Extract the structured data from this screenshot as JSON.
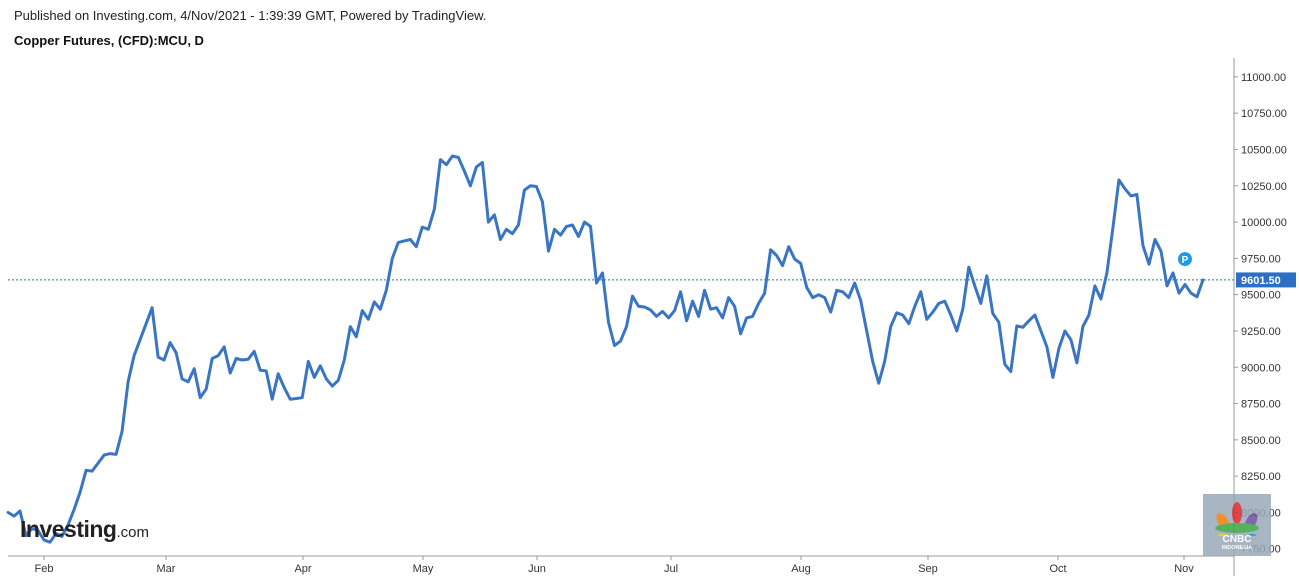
{
  "header": {
    "published": "Published on Investing.com, 4/Nov/2021 - 1:39:39 GMT, Powered by TradingView.",
    "instrument": "Copper Futures, (CFD):MCU, D"
  },
  "logo": {
    "main": "Investing",
    "suffix": ".com"
  },
  "badge": {
    "name": "CNBC",
    "sub": "INDONESIA"
  },
  "colors": {
    "line": "#3a75c4",
    "marker": "#1e9be6",
    "price_tag": "#2d6fc4"
  },
  "chart_data": {
    "type": "line",
    "title": "Copper Futures, (CFD):MCU, D",
    "x_tick_labels": [
      "Feb",
      "Mar",
      "Apr",
      "May",
      "Jun",
      "Jul",
      "Aug",
      "Sep",
      "Oct",
      "Nov"
    ],
    "y_tick_labels": [
      "7750.00",
      "8000.00",
      "8250.00",
      "8500.00",
      "8750.00",
      "9000.00",
      "9250.00",
      "9500.00",
      "9750.00",
      "10000.00",
      "10250.00",
      "10500.00",
      "10750.00",
      "11000.00"
    ],
    "ylim": [
      7700,
      11130
    ],
    "last_price": 9601.5,
    "last_price_label": "9601.50",
    "marker_label": "P",
    "marker_value": 9745,
    "grid": false,
    "series": [
      {
        "values": [
          8000,
          7975,
          8010,
          7840,
          7890,
          7875,
          7810,
          7795,
          7855,
          7835,
          7915,
          8020,
          8140,
          8290,
          8285,
          8340,
          8395,
          8405,
          8400,
          8560,
          8900,
          9080,
          9190,
          9300,
          9410,
          9070,
          9050,
          9170,
          9100,
          8920,
          8900,
          8990,
          8790,
          8850,
          9060,
          9080,
          9140,
          8960,
          9060,
          9050,
          9055,
          9110,
          8980,
          8975,
          8780,
          8955,
          8860,
          8780,
          8785,
          8790,
          9040,
          8930,
          9010,
          8920,
          8870,
          8910,
          9050,
          9280,
          9210,
          9390,
          9330,
          9450,
          9400,
          9530,
          9750,
          9860,
          9870,
          9880,
          9830,
          9965,
          9950,
          10090,
          10430,
          10395,
          10455,
          10445,
          10350,
          10250,
          10380,
          10410,
          10000,
          10050,
          9880,
          9950,
          9920,
          9980,
          10220,
          10250,
          10245,
          10140,
          9800,
          9950,
          9910,
          9970,
          9980,
          9900,
          10000,
          9970,
          9580,
          9650,
          9310,
          9150,
          9180,
          9280,
          9490,
          9420,
          9415,
          9395,
          9350,
          9385,
          9340,
          9390,
          9520,
          9320,
          9455,
          9350,
          9530,
          9400,
          9410,
          9340,
          9480,
          9420,
          9230,
          9340,
          9350,
          9440,
          9510,
          9810,
          9770,
          9700,
          9830,
          9745,
          9715,
          9550,
          9480,
          9500,
          9480,
          9380,
          9530,
          9520,
          9480,
          9580,
          9460,
          9250,
          9040,
          8890,
          9040,
          9280,
          9375,
          9360,
          9300,
          9420,
          9520,
          9330,
          9380,
          9440,
          9455,
          9360,
          9250,
          9400,
          9690,
          9560,
          9440,
          9630,
          9370,
          9310,
          9020,
          8970,
          9285,
          9275,
          9320,
          9360,
          9250,
          9140,
          8930,
          9130,
          9250,
          9190,
          9030,
          9280,
          9360,
          9560,
          9470,
          9650,
          9960,
          10290,
          10230,
          10180,
          10190,
          9840,
          9710,
          9880,
          9800,
          9560,
          9650,
          9510,
          9570,
          9510,
          9485,
          9601.5
        ]
      }
    ]
  }
}
